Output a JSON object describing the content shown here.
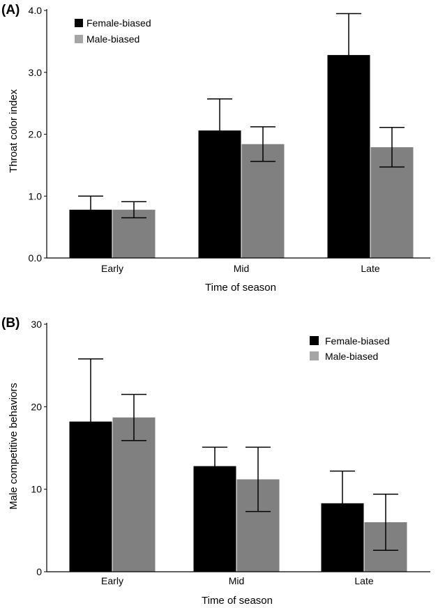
{
  "colors": {
    "female": "#000000",
    "male": "#808080",
    "male_legend": "#a6a6a6",
    "axis": "#000000"
  },
  "chart_data": [
    {
      "type": "bar",
      "panel_label": "(A)",
      "categories": [
        "Early",
        "Mid",
        "Late"
      ],
      "series": [
        {
          "name": "Female-biased",
          "values": [
            0.78,
            2.06,
            3.28
          ],
          "errors": [
            0.22,
            0.51,
            0.67
          ]
        },
        {
          "name": "Male-biased",
          "values": [
            0.78,
            1.84,
            1.79
          ],
          "errors": [
            0.13,
            0.28,
            0.32
          ]
        }
      ],
      "xlabel": "Time of season",
      "ylabel": "Throat color index",
      "ylim": [
        0,
        4.0
      ],
      "yticks": [
        "0.0",
        "1.0",
        "2.0",
        "3.0",
        "4.0"
      ],
      "legend_position": "top-left",
      "grid": false
    },
    {
      "type": "bar",
      "panel_label": "(B)",
      "categories": [
        "Early",
        "Mid",
        "Late"
      ],
      "series": [
        {
          "name": "Female-biased",
          "values": [
            18.2,
            12.8,
            8.3
          ],
          "errors": [
            7.6,
            2.3,
            3.9
          ]
        },
        {
          "name": "Male-biased",
          "values": [
            18.7,
            11.2,
            6.0
          ],
          "errors": [
            2.8,
            3.9,
            3.4
          ]
        }
      ],
      "xlabel": "Time of season",
      "ylabel": "Male competitive behaviors",
      "ylim": [
        0,
        30
      ],
      "yticks": [
        "0",
        "10",
        "20",
        "30"
      ],
      "legend_position": "top-right",
      "grid": false
    }
  ]
}
